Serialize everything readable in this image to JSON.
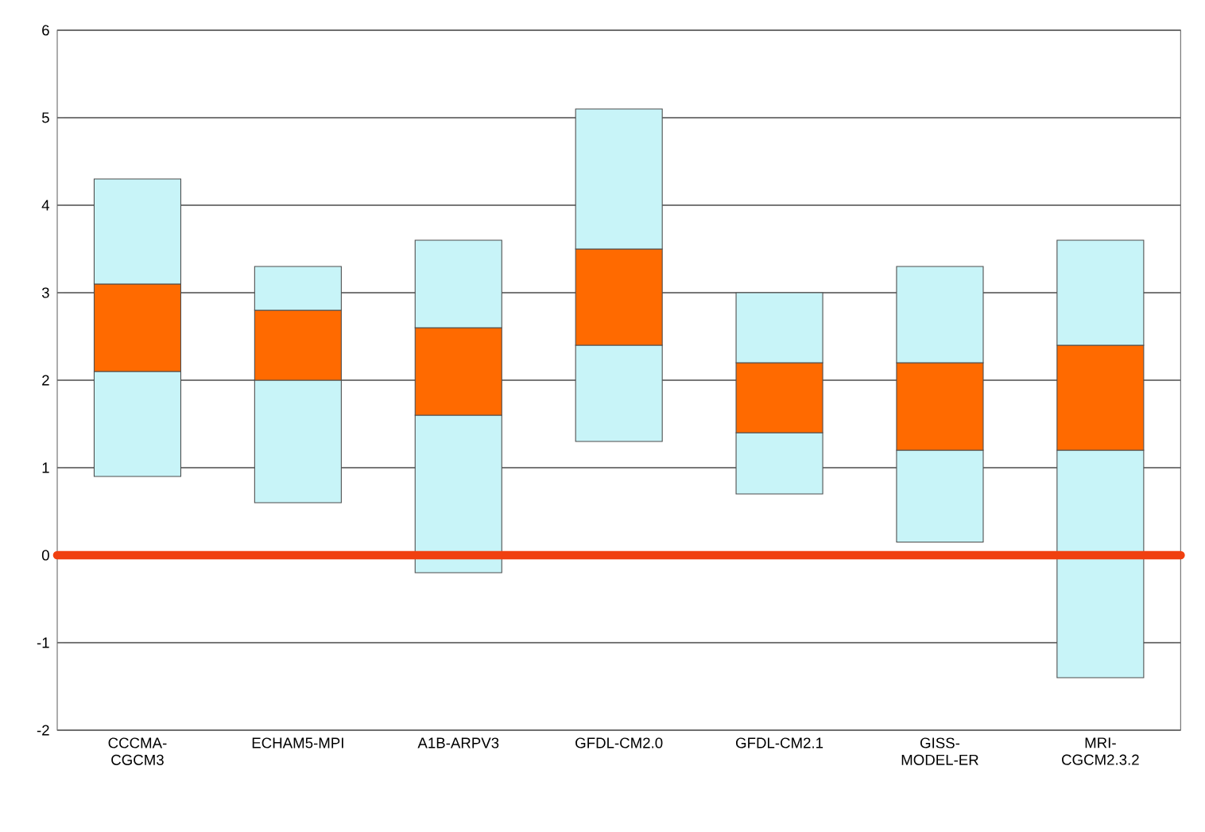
{
  "chart_data": {
    "type": "bar",
    "categories": [
      "CCCMA-CGCM3",
      "ECHAM5-MPI",
      "A1B-ARPV3",
      "GFDL-CM2.0",
      "GFDL-CM2.1",
      "GISS-MODEL-ER",
      "MRI-CGCM2.3.2"
    ],
    "series": [
      {
        "color": "#c8f4f8",
        "base": [
          0.9,
          0.6,
          -0.2,
          1.3,
          0.7,
          0.15,
          -1.4
        ],
        "values": [
          1.2,
          1.4,
          1.8,
          1.1,
          0.7,
          1.05,
          2.6
        ]
      },
      {
        "color": "#ff6a00",
        "base": [
          2.1,
          2.0,
          1.6,
          2.4,
          1.4,
          1.2,
          1.2
        ],
        "values": [
          1.0,
          0.8,
          1.0,
          1.1,
          0.8,
          1.0,
          1.2
        ]
      },
      {
        "color": "#c8f4f8",
        "base": [
          3.1,
          2.8,
          2.6,
          3.5,
          2.2,
          2.2,
          2.4
        ],
        "values": [
          1.2,
          0.5,
          1.0,
          1.6,
          0.8,
          1.1,
          1.2
        ]
      }
    ],
    "ylim": [
      -2,
      6
    ],
    "yticks": [
      -2,
      -1,
      0,
      1,
      2,
      3,
      4,
      5,
      6
    ],
    "grid": "y",
    "ref_lines": [
      {
        "axis": "y",
        "value": 0,
        "color": "#f04010"
      }
    ]
  }
}
